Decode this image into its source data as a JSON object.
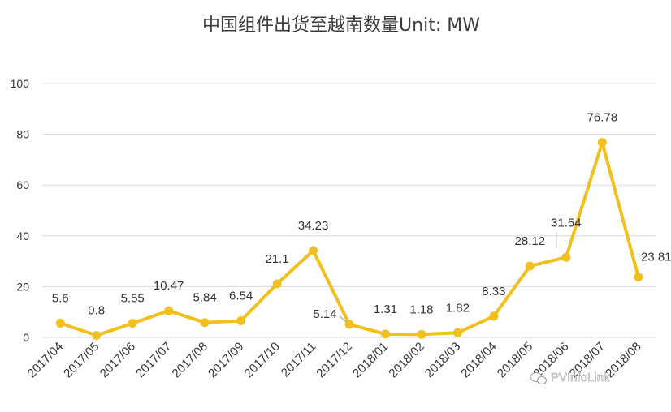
{
  "chart_data": {
    "type": "line",
    "title": "中国组件出货至越南数量Unit: MW",
    "xlabel": "",
    "ylabel": "",
    "categories": [
      "2017/04",
      "2017/05",
      "2017/06",
      "2017/07",
      "2017/08",
      "2017/09",
      "2017/10",
      "2017/11",
      "2017/12",
      "2018/01",
      "2018/02",
      "2018/03",
      "2018/04",
      "2018/05",
      "2018/06",
      "2018/07",
      "2018/08"
    ],
    "series": [
      {
        "values": [
          5.6,
          0.8,
          5.55,
          10.47,
          5.84,
          6.54,
          21.1,
          34.23,
          5.14,
          1.31,
          1.18,
          1.82,
          8.33,
          28.12,
          31.54,
          76.78,
          23.81
        ]
      }
    ],
    "data_labels": [
      "5.6",
      "0.8",
      "5.55",
      "10.47",
      "5.84",
      "6.54",
      "21.1",
      "34.23",
      "5.14",
      "1.31",
      "1.18",
      "1.82",
      "8.33",
      "28.12",
      "31.54",
      "76.78",
      "23.81"
    ],
    "ylim": [
      0,
      100
    ],
    "yticks": [
      0,
      20,
      40,
      60,
      80,
      100
    ],
    "grid": true,
    "legend": "none",
    "line_color": "#f2c01e",
    "grid_color": "#d9d9d9"
  },
  "watermark": {
    "text": "PVInfoLink",
    "icon": "wechat-icon"
  }
}
